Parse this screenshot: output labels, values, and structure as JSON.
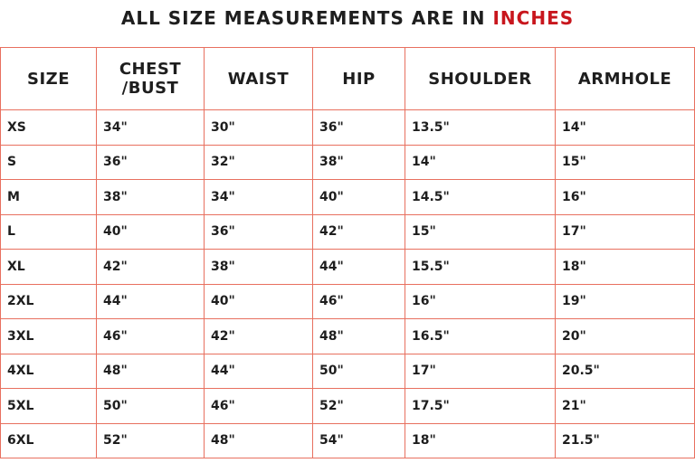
{
  "title": {
    "prefix": "ALL SIZE MEASUREMENTS ARE IN ",
    "highlight": "INCHES",
    "highlight_color": "#c8161d"
  },
  "table": {
    "headers": [
      "SIZE",
      "CHEST\n/BUST",
      "WAIST",
      "HIP",
      "SHOULDER",
      "ARMHOLE"
    ],
    "rows": [
      [
        "XS",
        "34\"",
        "30\"",
        "36\"",
        "13.5\"",
        "14\""
      ],
      [
        "S",
        "36\"",
        "32\"",
        "38\"",
        "14\"",
        "15\""
      ],
      [
        "M",
        "38\"",
        "34\"",
        "40\"",
        "14.5\"",
        "16\""
      ],
      [
        "L",
        "40\"",
        "36\"",
        "42\"",
        "15\"",
        "17\""
      ],
      [
        "XL",
        "42\"",
        "38\"",
        "44\"",
        "15.5\"",
        "18\""
      ],
      [
        "2XL",
        "44\"",
        "40\"",
        "46\"",
        "16\"",
        "19\""
      ],
      [
        "3XL",
        "46\"",
        "42\"",
        "48\"",
        "16.5\"",
        "20\""
      ],
      [
        "4XL",
        "48\"",
        "44\"",
        "50\"",
        "17\"",
        "20.5\""
      ],
      [
        "5XL",
        "50\"",
        "46\"",
        "52\"",
        "17.5\"",
        "21\""
      ],
      [
        "6XL",
        "52\"",
        "48\"",
        "54\"",
        "18\"",
        "21.5\""
      ]
    ]
  }
}
